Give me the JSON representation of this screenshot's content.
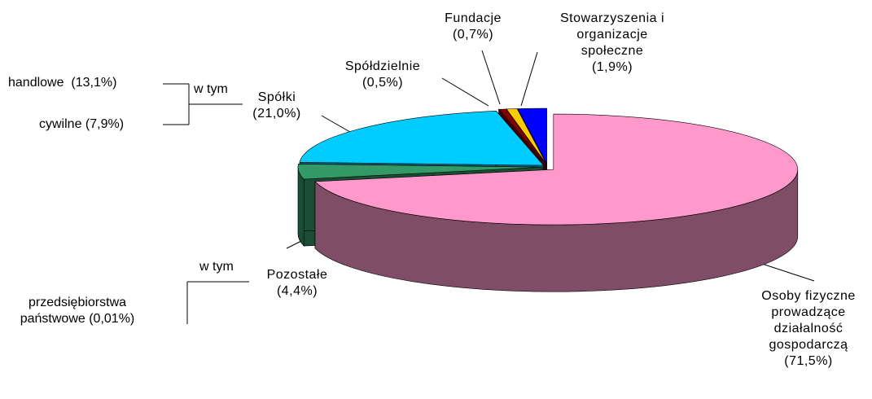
{
  "chart_data": {
    "type": "pie3d",
    "categories": [
      "Osoby fizyczne prowadzące działalność gospodarczą",
      "Pozostałe",
      "Spółki",
      "Spółdzielnie",
      "Fundacje",
      "Stowarzyszenia i organizacje społeczne"
    ],
    "values": [
      71.5,
      4.4,
      21.0,
      0.5,
      0.7,
      1.9
    ],
    "value_labels": [
      "(71,5%)",
      "(4,4%)",
      "(21,0%)",
      "(0,5%)",
      "(0,7%)",
      "(1,9%)"
    ],
    "colors": [
      "#ff99cc",
      "#339966",
      "#00ccff",
      "#800000",
      "#ffcc00",
      "#0000ff"
    ],
    "annotations": [
      "w tym",
      "handlowe  (13,1%)",
      "cywilne (7,9%)",
      "w tym",
      "przedsiębiorstwa państwowe (0,01%)"
    ]
  }
}
